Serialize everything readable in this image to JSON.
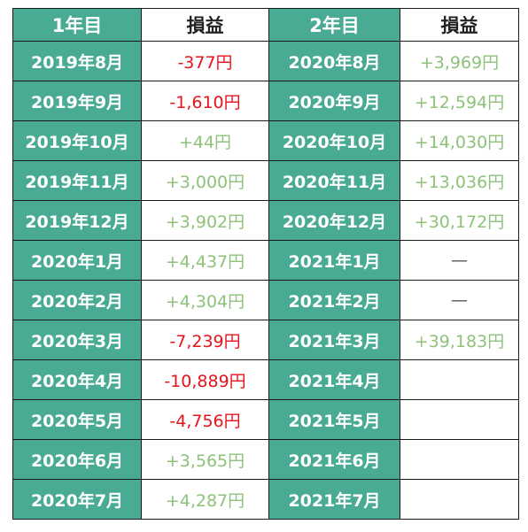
{
  "headers": {
    "year1": "1年目",
    "pl1": "損益",
    "year2": "2年目",
    "pl2": "損益"
  },
  "rows": [
    {
      "m1": "2019年8月",
      "v1": "-377円",
      "s1": "neg",
      "m2": "2020年8月",
      "v2": "+3,969円",
      "s2": "pos"
    },
    {
      "m1": "2019年9月",
      "v1": "-1,610円",
      "s1": "neg",
      "m2": "2020年9月",
      "v2": "+12,594円",
      "s2": "pos"
    },
    {
      "m1": "2019年10月",
      "v1": "+44円",
      "s1": "pos",
      "m2": "2020年10月",
      "v2": "+14,030円",
      "s2": "pos"
    },
    {
      "m1": "2019年11月",
      "v1": "+3,000円",
      "s1": "pos",
      "m2": "2020年11月",
      "v2": "+13,036円",
      "s2": "pos"
    },
    {
      "m1": "2019年12月",
      "v1": "+3,902円",
      "s1": "pos",
      "m2": "2020年12月",
      "v2": "+30,172円",
      "s2": "pos"
    },
    {
      "m1": "2020年1月",
      "v1": "+4,437円",
      "s1": "pos",
      "m2": "2021年1月",
      "v2": "—",
      "s2": "dash"
    },
    {
      "m1": "2020年2月",
      "v1": "+4,304円",
      "s1": "pos",
      "m2": "2021年2月",
      "v2": "—",
      "s2": "dash"
    },
    {
      "m1": "2020年3月",
      "v1": "-7,239円",
      "s1": "neg",
      "m2": "2021年3月",
      "v2": "+39,183円",
      "s2": "pos"
    },
    {
      "m1": "2020年4月",
      "v1": "-10,889円",
      "s1": "neg",
      "m2": "2021年4月",
      "v2": "",
      "s2": "empty"
    },
    {
      "m1": "2020年5月",
      "v1": "-4,756円",
      "s1": "neg",
      "m2": "2021年5月",
      "v2": "",
      "s2": "empty"
    },
    {
      "m1": "2020年6月",
      "v1": "+3,565円",
      "s1": "pos",
      "m2": "2021年6月",
      "v2": "",
      "s2": "empty"
    },
    {
      "m1": "2020年7月",
      "v1": "+4,287円",
      "s1": "pos",
      "m2": "2021年7月",
      "v2": "",
      "s2": "empty"
    }
  ],
  "colors": {
    "month_cell_bg": "#49ab94",
    "month_cell_text": "#ffffff",
    "loss_text": "#e8141c",
    "profit_text": "#8ec27a",
    "border": "#1a1a1a"
  }
}
